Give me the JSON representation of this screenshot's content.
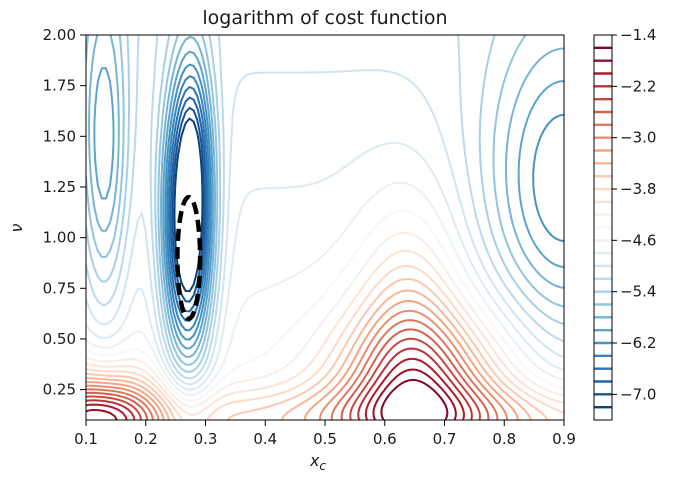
{
  "chart_data": {
    "type": "contour",
    "title": "logarithm of cost function",
    "xlabel": "x",
    "xlabel_subscript": "c",
    "ylabel": "ν",
    "xlim": [
      0.1,
      0.9
    ],
    "ylim": [
      0.1,
      2.0
    ],
    "x_ticks": [
      "0.1",
      "0.2",
      "0.3",
      "0.4",
      "0.5",
      "0.6",
      "0.7",
      "0.8",
      "0.9"
    ],
    "y_ticks": [
      "0.25",
      "0.50",
      "0.75",
      "1.00",
      "1.25",
      "1.50",
      "1.75",
      "2.00"
    ],
    "colormap": "RdBu",
    "colorbar": {
      "range": [
        -7.4,
        -1.4
      ],
      "levels_step": 0.2,
      "ticks": [
        "−1.4",
        "−2.2",
        "−3.0",
        "−3.8",
        "−4.6",
        "−5.4",
        "−6.2",
        "−7.0"
      ]
    },
    "minimum_region": {
      "x_center": 0.272,
      "y_center": 0.9,
      "x_half_width": 0.019,
      "y_half_height": 0.3,
      "style": "dashed black ellipse"
    },
    "grid": false
  }
}
